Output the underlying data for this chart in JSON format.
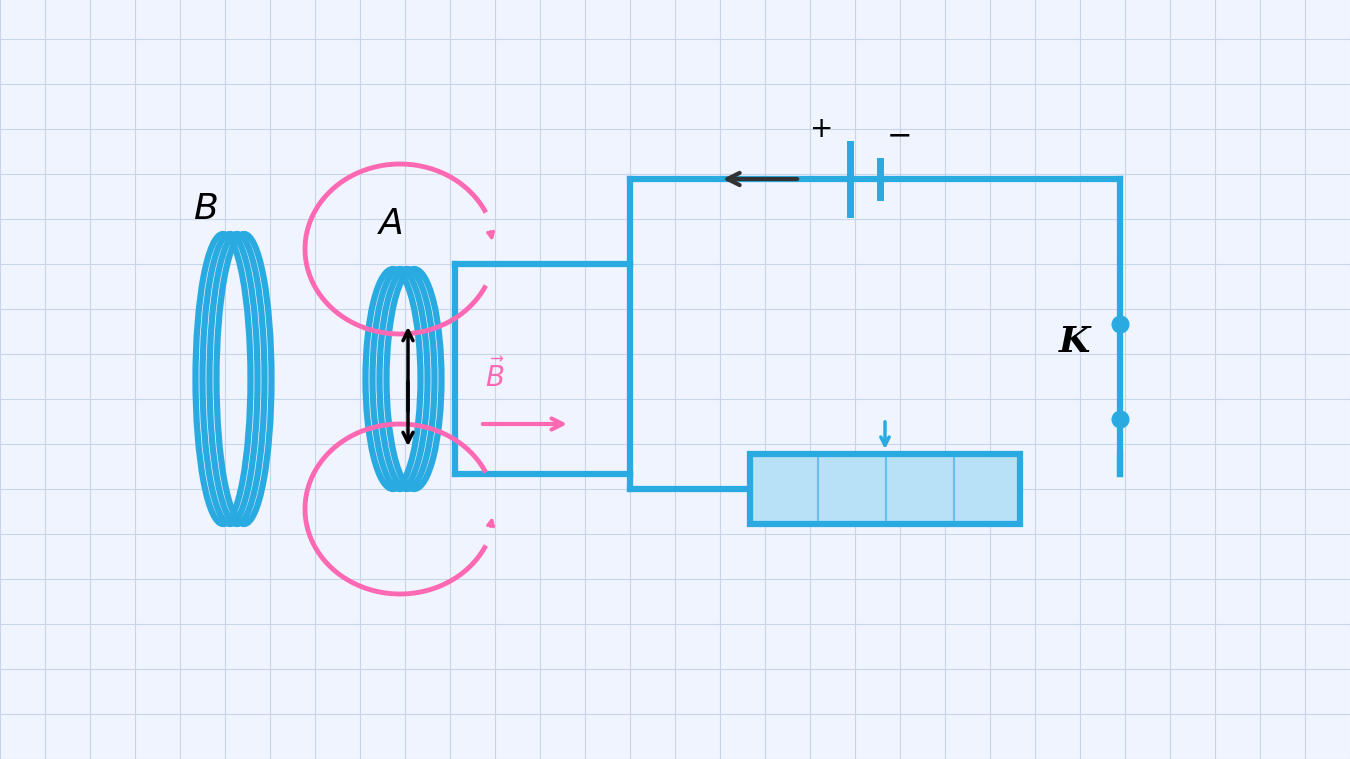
{
  "bg_color": "#f0f4ff",
  "grid_color": "#c8d4e8",
  "blue": "#29abe2",
  "pink": "#ff69b4",
  "black": "#111111",
  "white": "#ffffff",
  "light_blue_fill": "#b8e0f7"
}
